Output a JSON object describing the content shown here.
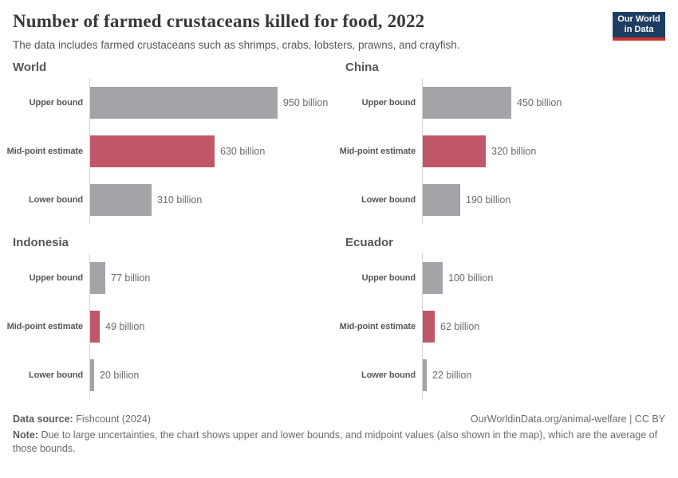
{
  "header": {
    "title": "Number of farmed crustaceans killed for food, 2022",
    "subtitle": "The data includes farmed crustaceans such as shrimps, crabs, lobsters, prawns, and crayfish.",
    "logo": {
      "line1": "Our World",
      "line2": "in Data",
      "bg_color": "#1d3d63",
      "accent_color": "#cc342c"
    }
  },
  "chart_data": {
    "type": "bar",
    "orientation": "horizontal",
    "title": "Number of farmed crustaceans killed for food, 2022",
    "subtitle": "The data includes farmed crustaceans such as shrimps, crabs, lobsters, prawns, and crayfish.",
    "unit": "billion",
    "xlim": [
      0,
      950
    ],
    "grid": false,
    "legend": "none",
    "categories": [
      "Upper bound",
      "Mid-point estimate",
      "Lower bound"
    ],
    "bar_colors": [
      "#a3a3a8",
      "#c05768",
      "#a3a3a8"
    ],
    "axis_line_color": "#d4d4d4",
    "panels": [
      {
        "title": "World",
        "values": [
          950,
          630,
          310
        ],
        "value_labels": [
          "950 billion",
          "630 billion",
          "310 billion"
        ]
      },
      {
        "title": "China",
        "values": [
          450,
          320,
          190
        ],
        "value_labels": [
          "450 billion",
          "320 billion",
          "190 billion"
        ]
      },
      {
        "title": "Indonesia",
        "values": [
          77,
          49,
          20
        ],
        "value_labels": [
          "77 billion",
          "49 billion",
          "20 billion"
        ]
      },
      {
        "title": "Ecuador",
        "values": [
          100,
          62,
          22
        ],
        "value_labels": [
          "100 billion",
          "62 billion",
          "22 billion"
        ]
      }
    ]
  },
  "footer": {
    "datasource_label": "Data source:",
    "datasource_value": "Fishcount (2024)",
    "link": "OurWorldinData.org/animal-welfare | CC BY",
    "note_label": "Note:",
    "note_text": "Due to large uncertainties, the chart shows upper and lower bounds, and midpoint values (also shown in the map), which are the average of those bounds."
  }
}
